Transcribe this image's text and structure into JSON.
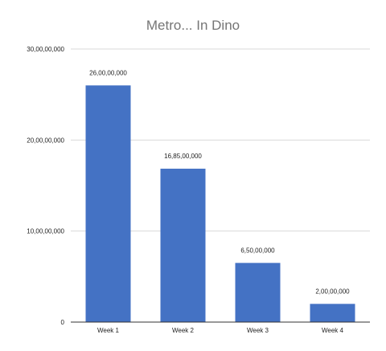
{
  "chart_data": {
    "type": "bar",
    "title": "Metro... In Dino",
    "categories": [
      "Week 1",
      "Week 2",
      "Week 3",
      "Week 4"
    ],
    "values": [
      260000000,
      168500000,
      65000000,
      20000000
    ],
    "value_labels": [
      "26,00,00,000",
      "16,85,00,000",
      "6,50,00,000",
      "2,00,00,000"
    ],
    "ylim": [
      0,
      300000000
    ],
    "yticks": [
      0,
      100000000,
      200000000,
      300000000
    ],
    "ytick_labels": [
      "0",
      "10,00,00,000",
      "20,00,00,000",
      "30,00,00,000"
    ],
    "xlabel": "",
    "ylabel": "",
    "grid": true,
    "legend": "none",
    "bar_color": "#4472c4"
  }
}
